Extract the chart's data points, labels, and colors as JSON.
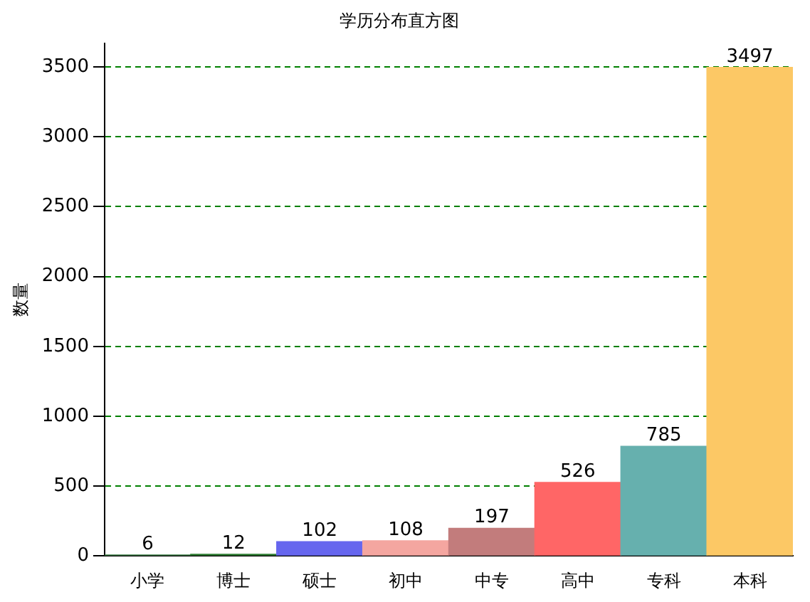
{
  "chart_data": {
    "type": "bar",
    "title": "学历分布直方图",
    "ylabel": "数量",
    "categories": [
      "小学",
      "博士",
      "硕士",
      "初中",
      "中专",
      "高中",
      "专科",
      "本科"
    ],
    "values": [
      6,
      12,
      102,
      108,
      197,
      526,
      785,
      3497
    ],
    "colors": [
      "#3a7d44",
      "#2e7d32",
      "#6666ee",
      "#f4a6a0",
      "#c27c7c",
      "#ff6666",
      "#66b0ae",
      "#fcc865"
    ],
    "data_labels": true,
    "ylim": [
      0,
      3670
    ],
    "yticks": [
      0,
      500,
      1000,
      1500,
      2000,
      2500,
      3000,
      3500
    ],
    "grid": "y",
    "line_style": "dashed",
    "legend": false
  }
}
